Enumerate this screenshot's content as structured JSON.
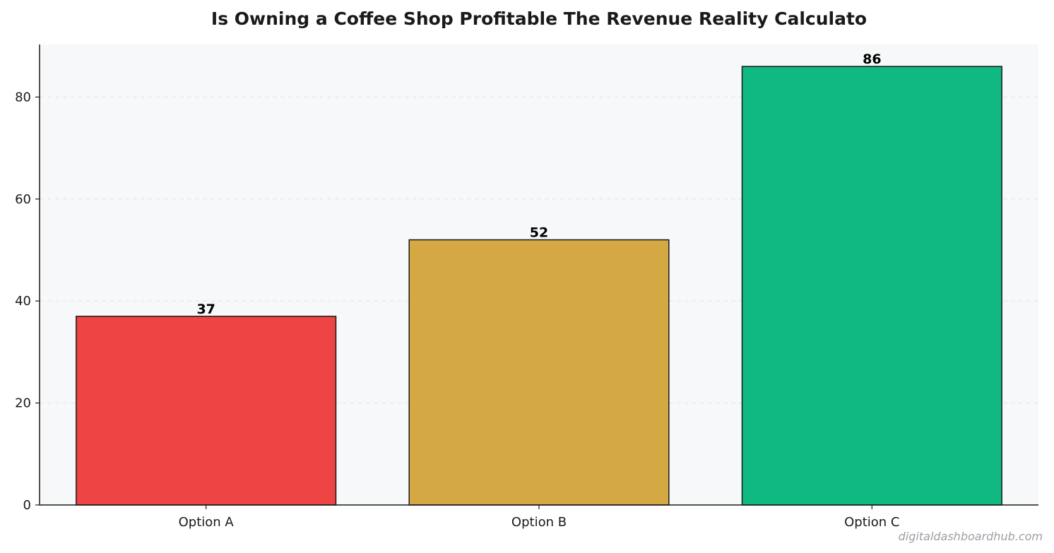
{
  "chart_data": {
    "type": "bar",
    "title": "Is Owning a Coffee Shop Profitable  The Revenue Reality Calculato",
    "xlabel": "",
    "ylabel": "",
    "categories": [
      "Option A",
      "Option B",
      "Option C"
    ],
    "values": [
      37,
      52,
      86
    ],
    "value_labels": [
      "37",
      "52",
      "86"
    ],
    "colors": [
      "#ef4444",
      "#d4a843",
      "#10b981"
    ],
    "ylim": [
      0,
      90.3
    ],
    "yticks": [
      0,
      20,
      40,
      60,
      80
    ],
    "ytick_labels": [
      "0",
      "20",
      "40",
      "60",
      "80"
    ],
    "grid": true,
    "legend": "none"
  },
  "watermark": "digitaldashboardhub.com"
}
